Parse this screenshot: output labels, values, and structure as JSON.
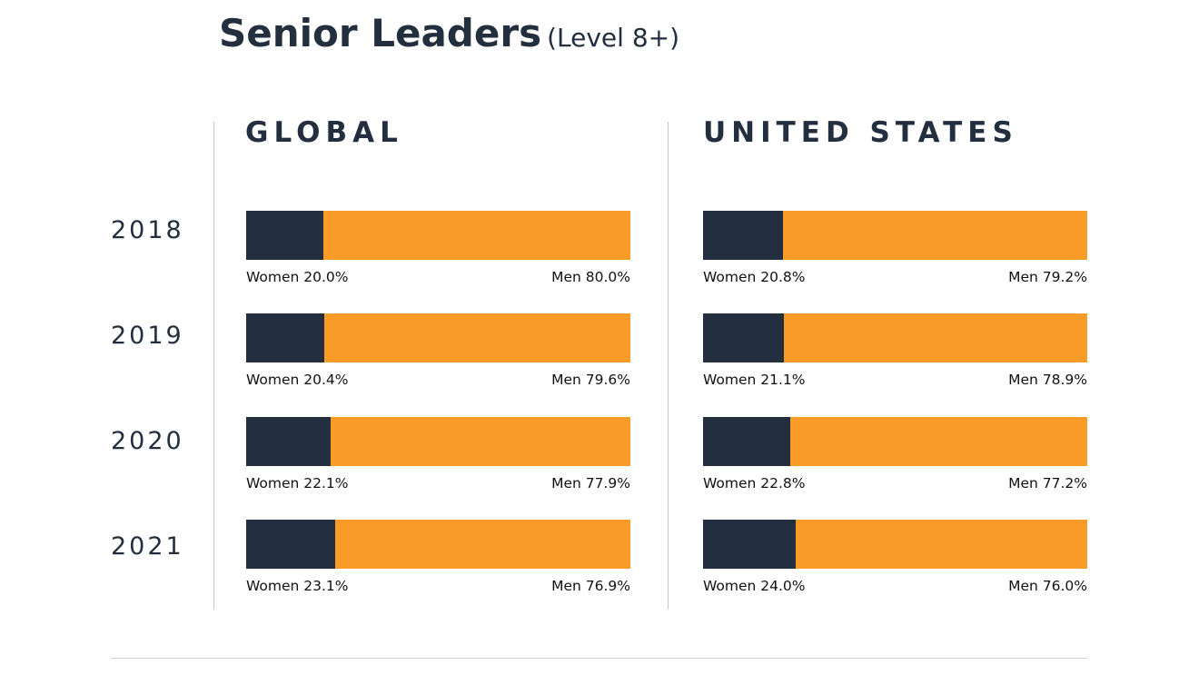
{
  "title": "Senior Leaders",
  "subtitle": "(Level 8+)",
  "colors": {
    "women": "#232f3e",
    "men": "#f89c27"
  },
  "chart_data": {
    "type": "bar",
    "stacked": true,
    "orientation": "horizontal",
    "categories": [
      "2018",
      "2019",
      "2020",
      "2021"
    ],
    "panels": [
      {
        "name": "GLOBAL",
        "series": [
          {
            "name": "Women",
            "values": [
              20.0,
              20.4,
              22.1,
              23.1
            ],
            "labels": [
              "Women 20.0%",
              "Women 20.4%",
              "Women 22.1%",
              "Women 23.1%"
            ]
          },
          {
            "name": "Men",
            "values": [
              80.0,
              79.6,
              77.9,
              76.9
            ],
            "labels": [
              "Men 80.0%",
              "Men 79.6%",
              "Men 77.9%",
              "Men 76.9%"
            ]
          }
        ]
      },
      {
        "name": "UNITED STATES",
        "series": [
          {
            "name": "Women",
            "values": [
              20.8,
              21.1,
              22.8,
              24.0
            ],
            "labels": [
              "Women 20.8%",
              "Women 21.1%",
              "Women 22.8%",
              "Women 24.0%"
            ]
          },
          {
            "name": "Men",
            "values": [
              79.2,
              78.9,
              77.2,
              76.0
            ],
            "labels": [
              "Men 79.2%",
              "Men 78.9%",
              "Men 77.2%",
              "Men 76.0%"
            ]
          }
        ]
      }
    ],
    "xlim": [
      0,
      100
    ],
    "legend": "none"
  }
}
